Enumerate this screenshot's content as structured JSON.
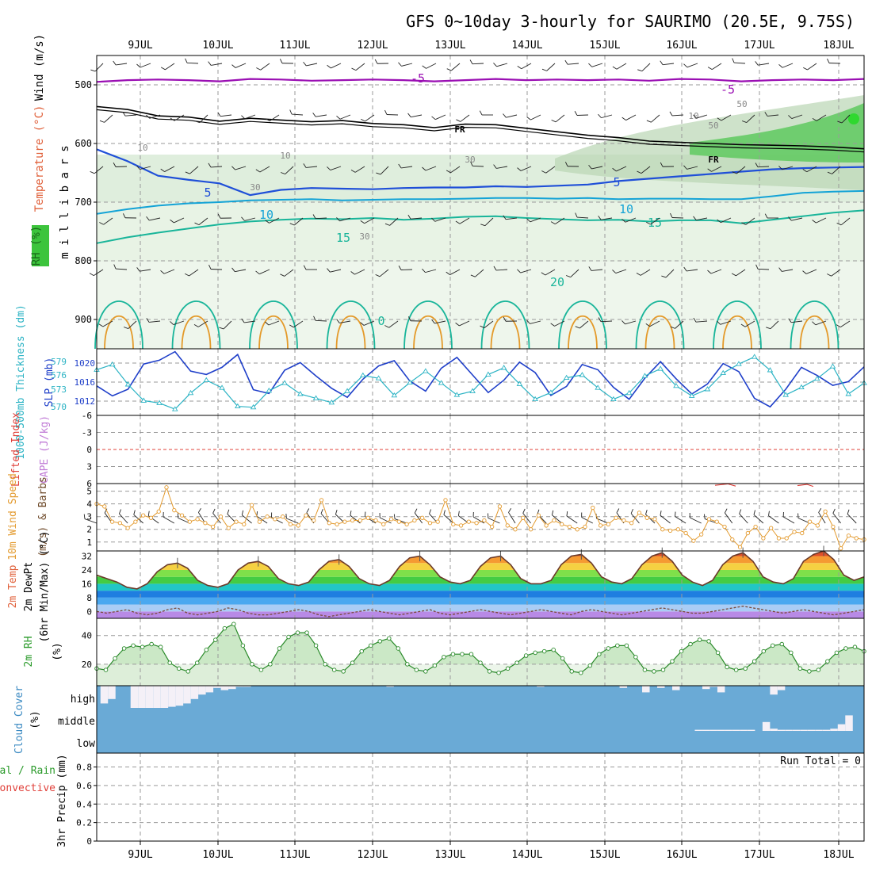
{
  "title": "GFS 0~10day 3-hourly for SAURIMO (20.5E, 9.75S)",
  "date_labels": [
    "9JUL",
    "10JUL",
    "11JUL",
    "12JUL",
    "13JUL",
    "14JUL",
    "15JUL",
    "16JUL",
    "17JUL",
    "18JUL"
  ],
  "colors": {
    "purple": "#9a0fb3",
    "blue": "#1f4fd8",
    "cyan": "#14a3d6",
    "teal": "#19b59a",
    "orange": "#e49a2a",
    "rh_green": "#3cc43c",
    "slp": "#1f3fc9",
    "thickness": "#2bb3c4",
    "wind10": "#e39a2e",
    "cloud_bg": "#6aaad6"
  },
  "chart_data": [
    {
      "type": "line",
      "panel": "upper-air",
      "ylabel": "m i l l i b a r s",
      "side_labels": [
        "Wind (m/s)",
        "Temperature (°C)",
        "RH (%)"
      ],
      "yticks": [
        500,
        600,
        700,
        800,
        900
      ],
      "ylim": [
        450,
        950
      ],
      "contour_labels": [
        "-5",
        "-5",
        "5",
        "5",
        "10",
        "10",
        "15",
        "15",
        "20",
        "0",
        "FR",
        "FR",
        "10",
        "10",
        "10",
        "30",
        "30",
        "30",
        "50",
        "50"
      ],
      "series": [
        {
          "values": [
            495,
            492,
            491,
            492,
            494,
            490,
            491,
            493,
            492,
            491,
            492,
            494,
            492,
            490,
            492,
            491,
            492,
            491,
            493,
            490,
            491,
            494,
            492,
            491,
            492,
            490
          ]
        },
        {
          "values": [
            537,
            542,
            553,
            555,
            562,
            557,
            560,
            563,
            561,
            566,
            568,
            573,
            567,
            568,
            574,
            580,
            586,
            590,
            596,
            598,
            600,
            602,
            603,
            604,
            606,
            609
          ]
        },
        {
          "values": [
            610,
            630,
            655,
            662,
            668,
            688,
            679,
            676,
            677,
            678,
            676,
            675,
            675,
            673,
            674,
            672,
            670,
            664,
            660,
            656,
            652,
            648,
            644,
            642,
            641,
            640
          ]
        },
        {
          "values": [
            720,
            712,
            706,
            702,
            700,
            697,
            696,
            695,
            697,
            696,
            695,
            695,
            694,
            693,
            693,
            694,
            693,
            695,
            694,
            694,
            695,
            695,
            690,
            684,
            682,
            681
          ]
        },
        {
          "values": [
            770,
            760,
            752,
            745,
            738,
            733,
            730,
            728,
            729,
            727,
            730,
            728,
            725,
            724,
            727,
            729,
            731,
            730,
            733,
            731,
            731,
            736,
            730,
            724,
            718,
            714
          ]
        }
      ]
    },
    {
      "type": "line",
      "panel": "slp-thickness",
      "left_label": "1000-500mb Thickness (dm)",
      "right_label": "SLP (mb)",
      "yticks_left": [
        "579",
        "576",
        "573",
        "570"
      ],
      "yticks_right": [
        "1020",
        "1016",
        "1012"
      ],
      "ylim": [
        1009,
        1023
      ],
      "series": [
        {
          "values": [
            1015.2,
            1013.1,
            1014.5,
            1019.8,
            1020.6,
            1022.4,
            1018.3,
            1017.6,
            1019.1,
            1021.8,
            1014.4,
            1013.6,
            1018.5,
            1020.1,
            1017.3,
            1014.7,
            1012.8,
            1016.6,
            1019.4,
            1020.5,
            1016.2,
            1014.1,
            1018.9,
            1021.2,
            1017.5,
            1013.8,
            1016.4,
            1020.2,
            1018.0,
            1013.2,
            1015.1,
            1019.7,
            1018.6,
            1014.9,
            1012.4,
            1016.8,
            1020.3,
            1016.7,
            1013.5,
            1015.6,
            1019.9,
            1018.2,
            1012.6,
            1010.8,
            1014.5,
            1019.1,
            1017.4,
            1015.3,
            1016.1,
            1019.2
          ]
        },
        {
          "values": [
            1018.6,
            1019.7,
            1015.5,
            1012.1,
            1011.6,
            1010.3,
            1013.7,
            1016.4,
            1014.8,
            1010.9,
            1010.7,
            1014.2,
            1015.8,
            1013.5,
            1012.6,
            1011.7,
            1014.1,
            1017.4,
            1016.8,
            1013.2,
            1015.9,
            1018.3,
            1015.8,
            1013.3,
            1014.1,
            1017.6,
            1019.0,
            1015.6,
            1012.4,
            1013.8,
            1016.9,
            1017.5,
            1014.8,
            1012.4,
            1013.7,
            1017.3,
            1018.8,
            1015.2,
            1013.1,
            1014.5,
            1017.9,
            1019.8,
            1021.3,
            1018.5,
            1013.3,
            1014.9,
            1016.7,
            1019.3,
            1013.5,
            1015.8
          ]
        }
      ]
    },
    {
      "type": "line",
      "panel": "cape-li",
      "left_label": "Lifted Index",
      "left_label2": "CAPE (J/kg)",
      "yticks": [
        "-6",
        "-3",
        "0",
        "3",
        "6"
      ],
      "ylim": [
        -6,
        6
      ],
      "series": [
        {
          "values": [
            5.1,
            4.2,
            5.6
          ]
        },
        {
          "values": [
            5.3,
            4.5,
            5.8
          ]
        }
      ]
    },
    {
      "type": "line",
      "panel": "wind10m",
      "left_label": "10m Wind Speed",
      "left_label2": "(m/s) & Barbs",
      "yticks": [
        "1",
        "2",
        "3",
        "4",
        "5"
      ],
      "ylim": [
        0.3,
        5.6
      ],
      "series": [
        {
          "values": [
            4.0,
            3.8,
            2.6,
            2.5,
            2.1,
            2.6,
            3.1,
            2.9,
            3.4,
            5.3,
            3.5,
            3.1,
            2.6,
            2.8,
            2.5,
            2.2,
            3.0,
            2.1,
            2.6,
            2.4,
            3.9,
            2.6,
            3.0,
            2.8,
            3.0,
            2.4,
            2.3,
            3.1,
            2.7,
            4.3,
            2.5,
            2.4,
            2.6,
            2.7,
            2.7,
            2.9,
            2.7,
            2.4,
            2.8,
            2.6,
            2.4,
            2.7,
            2.9,
            2.5,
            2.6,
            4.3,
            2.4,
            2.3,
            2.6,
            2.5,
            2.7,
            2.2,
            3.8,
            2.3,
            2.0,
            2.9,
            2.0,
            3.1,
            2.3,
            2.7,
            2.4,
            2.2,
            2.0,
            2.2,
            3.7,
            2.3,
            2.4,
            2.9,
            2.7,
            2.5,
            3.3,
            2.9,
            2.8,
            2.0,
            1.9,
            2.0,
            1.7,
            1.1,
            1.6,
            2.8,
            2.6,
            2.2,
            1.2,
            0.6,
            1.7,
            2.2,
            1.3,
            2.1,
            1.3,
            1.3,
            1.8,
            1.7,
            2.6,
            2.3,
            3.4,
            2.2,
            0.5,
            1.5,
            1.3,
            1.2
          ]
        }
      ]
    },
    {
      "type": "area",
      "panel": "temp2m",
      "left_label": "2m Temp",
      "left_label2": "2m DewPt",
      "left_label3": "(6hr Min/Max) (°C)",
      "yticks": [
        "0",
        "8",
        "16",
        "24",
        "32"
      ],
      "ylim": [
        -4,
        35
      ],
      "series": [
        {
          "values": [
            21,
            19,
            17,
            14,
            13,
            16,
            23,
            27,
            28,
            25,
            18,
            15,
            14,
            16,
            24,
            28,
            29,
            26,
            19,
            16,
            15,
            17,
            24,
            29,
            30,
            26,
            19,
            16,
            15,
            18,
            26,
            31,
            32,
            27,
            20,
            17,
            16,
            18,
            26,
            31,
            32,
            27,
            19,
            16,
            16,
            18,
            27,
            32,
            33,
            28,
            20,
            17,
            16,
            19,
            27,
            32,
            34,
            29,
            21,
            17,
            15,
            18,
            27,
            32,
            34,
            29,
            20,
            17,
            16,
            19,
            29,
            33,
            35,
            30,
            21,
            18,
            20
          ]
        },
        {
          "values": [
            0,
            -1,
            0,
            1,
            -1,
            -2,
            -1,
            1,
            2,
            -1,
            -2,
            -1,
            0,
            2,
            1,
            -1,
            -2,
            -2,
            -1,
            0,
            1,
            0,
            -2,
            -3,
            -2,
            -1,
            0,
            1,
            0,
            -1,
            -2,
            -1,
            0,
            1,
            -1,
            -2,
            -1,
            0,
            1,
            0,
            -1,
            -2,
            -1,
            0,
            1,
            0,
            -1,
            -2,
            0,
            1,
            0,
            -1,
            -2,
            -1,
            0,
            1,
            2,
            1,
            0,
            -1,
            -1,
            0,
            1,
            2,
            3,
            2,
            1,
            0,
            -1,
            0,
            1,
            0,
            -1,
            -2,
            -1,
            0,
            1
          ]
        }
      ]
    },
    {
      "type": "area",
      "panel": "rh2m",
      "left_label": "2m RH",
      "left_label2": "(%)",
      "yticks": [
        "20",
        "40"
      ],
      "ylim": [
        5,
        52
      ],
      "series": [
        {
          "values": [
            17,
            16,
            24,
            31,
            33,
            32,
            34,
            32,
            21,
            17,
            15,
            21,
            30,
            37,
            45,
            48,
            33,
            20,
            16,
            20,
            31,
            39,
            42,
            42,
            33,
            20,
            16,
            15,
            21,
            29,
            33,
            36,
            38,
            31,
            20,
            16,
            15,
            19,
            25,
            27,
            27,
            27,
            21,
            15,
            14,
            17,
            21,
            26,
            28,
            29,
            30,
            24,
            15,
            14,
            19,
            27,
            31,
            33,
            33,
            25,
            16,
            15,
            16,
            22,
            29,
            34,
            37,
            36,
            28,
            18,
            16,
            17,
            22,
            29,
            33,
            34,
            28,
            17,
            15,
            16,
            22,
            28,
            31,
            32,
            29
          ]
        }
      ]
    },
    {
      "type": "area",
      "panel": "cloud-cover",
      "left_label": "Cloud Cover",
      "left_label2": "(%)",
      "level_labels": [
        "high",
        "middle",
        "low"
      ],
      "series": [
        {
          "name": "high",
          "values": [
            0,
            80,
            60,
            0,
            0,
            100,
            100,
            100,
            100,
            100,
            95,
            90,
            80,
            60,
            40,
            30,
            10,
            20,
            15,
            5,
            5,
            0,
            0,
            0,
            0,
            0,
            0,
            0,
            0,
            0,
            0,
            0,
            0,
            0,
            0,
            0,
            0,
            0,
            0,
            5,
            0,
            0,
            0,
            0,
            0,
            0,
            0,
            0,
            0,
            0,
            0,
            0,
            0,
            0,
            0,
            0,
            0,
            0,
            0,
            5,
            0,
            0,
            0,
            0,
            0,
            0,
            0,
            0,
            0,
            0,
            10,
            0,
            0,
            30,
            0,
            10,
            0,
            20,
            0,
            0,
            0,
            15,
            5,
            30,
            0,
            0,
            0,
            0,
            0,
            0,
            40,
            20,
            0,
            0,
            0,
            0,
            0,
            0,
            0,
            0,
            0,
            0,
            0
          ]
        },
        {
          "name": "middle",
          "values": [
            0,
            0,
            0,
            0,
            0,
            0,
            0,
            0,
            0,
            0,
            0,
            0,
            0,
            0,
            0,
            0,
            0,
            0,
            0,
            0,
            0,
            0,
            0,
            0,
            0,
            0,
            0,
            0,
            0,
            0,
            0,
            0,
            0,
            0,
            0,
            0,
            0,
            0,
            0,
            0,
            0,
            0,
            0,
            0,
            0,
            0,
            0,
            0,
            0,
            0,
            0,
            0,
            0,
            0,
            0,
            0,
            0,
            0,
            0,
            0,
            0,
            0,
            0,
            0,
            0,
            0,
            0,
            0,
            0,
            0,
            0,
            0,
            0,
            0,
            0,
            0,
            0,
            0,
            0,
            0,
            5,
            5,
            5,
            5,
            5,
            5,
            5,
            5,
            0,
            40,
            10,
            5,
            5,
            5,
            5,
            5,
            5,
            5,
            10,
            30,
            70,
            0,
            0
          ]
        }
      ]
    },
    {
      "type": "bar",
      "panel": "precip",
      "left_label": "3hr Precip (mm)",
      "right_top_label1": "Total / Rain",
      "right_top_label2": "Convective",
      "run_total": "Run Total = 0",
      "yticks": [
        "0",
        "0.2",
        "0.4",
        "0.6",
        "0.8"
      ],
      "ylim": [
        0,
        0.95
      ],
      "values": [
        0
      ]
    }
  ]
}
